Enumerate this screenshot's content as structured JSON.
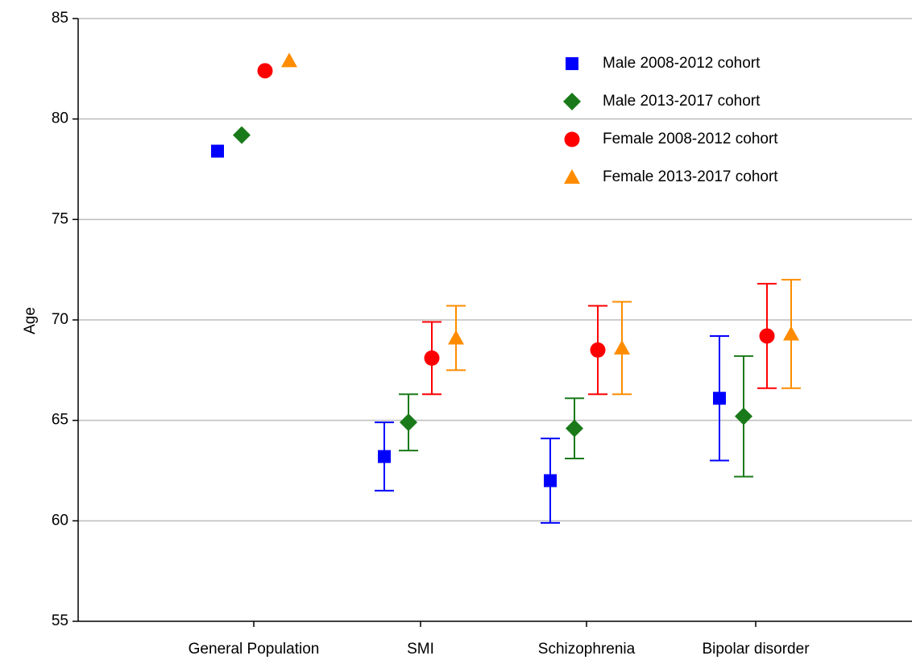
{
  "chart_data": {
    "type": "scatter",
    "title": "",
    "xlabel": "",
    "ylabel": "Age",
    "ylim": [
      55,
      85
    ],
    "yticks": [
      55,
      60,
      65,
      70,
      75,
      80,
      85
    ],
    "grid": "horizontal",
    "legend_position": "top-right",
    "categories": [
      "General Population",
      "SMI",
      "Schizophrenia",
      "Bipolar disorder"
    ],
    "series": [
      {
        "name": "Male 2008-2012 cohort",
        "marker": "square",
        "color": "#0000ff",
        "values": [
          78.4,
          63.2,
          62.0,
          66.1
        ],
        "lower": [
          null,
          61.5,
          59.9,
          63.0
        ],
        "upper": [
          null,
          64.9,
          64.1,
          69.2
        ]
      },
      {
        "name": "Male 2013-2017 cohort",
        "marker": "diamond",
        "color": "#1a7a1a",
        "values": [
          79.2,
          64.9,
          64.6,
          65.2
        ],
        "lower": [
          null,
          63.5,
          63.1,
          62.2
        ],
        "upper": [
          null,
          66.3,
          66.1,
          68.2
        ]
      },
      {
        "name": "Female 2008-2012 cohort",
        "marker": "circle",
        "color": "#ff0000",
        "values": [
          82.4,
          68.1,
          68.5,
          69.2
        ],
        "lower": [
          null,
          66.3,
          66.3,
          66.6
        ],
        "upper": [
          null,
          69.9,
          70.7,
          71.8
        ]
      },
      {
        "name": "Female 2013-2017 cohort",
        "marker": "triangle",
        "color": "#ff8c00",
        "values": [
          82.9,
          69.1,
          68.6,
          69.3
        ],
        "lower": [
          null,
          67.5,
          66.3,
          66.6
        ],
        "upper": [
          null,
          70.7,
          70.9,
          72.0
        ]
      }
    ]
  }
}
